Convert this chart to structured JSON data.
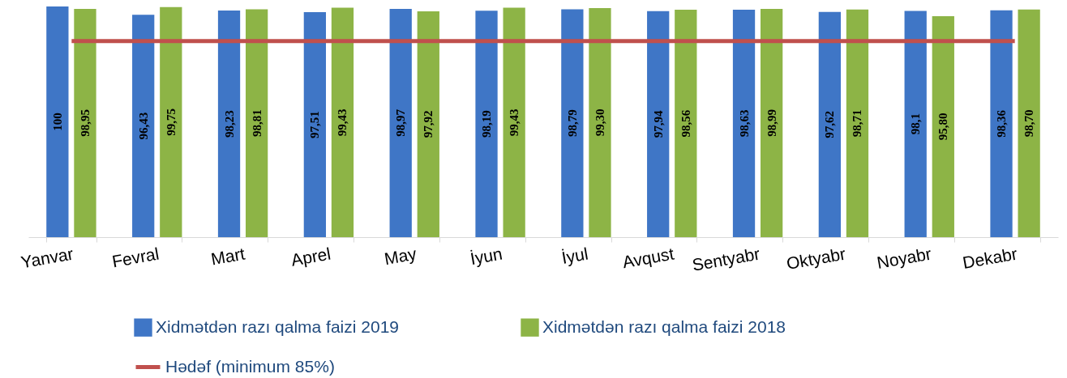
{
  "chart_data": {
    "type": "bar",
    "categories": [
      "Yanvar",
      "Fevral",
      "Mart",
      "Aprel",
      "May",
      "İyun",
      "İyul",
      "Avqust",
      "Sentyabr",
      "Oktyabr",
      "Noyabr",
      "Dekabr"
    ],
    "series": [
      {
        "name": "Xidmətdən razı qalma faizi 2019",
        "color": "#3f76c6",
        "values": [
          100,
          96.43,
          98.23,
          97.51,
          98.97,
          98.19,
          98.79,
          97.94,
          98.63,
          97.62,
          98.1,
          98.36
        ],
        "value_labels": [
          "100",
          "96,43",
          "98,23",
          "97,51",
          "98,97",
          "98,19",
          "98,79",
          "97,94",
          "98,63",
          "97,62",
          "98,1",
          "98,36"
        ]
      },
      {
        "name": "Xidmətdən razı qalma faizi 2018",
        "color": "#8db446",
        "values": [
          98.95,
          99.75,
          98.81,
          99.43,
          97.92,
          99.43,
          99.3,
          98.56,
          98.99,
          98.71,
          95.8,
          98.7
        ],
        "value_labels": [
          "98,95",
          "99,75",
          "98,81",
          "99,43",
          "97,92",
          "99,43",
          "99,30",
          "98,56",
          "98,99",
          "98,71",
          "95,80",
          "98,70"
        ]
      }
    ],
    "ylim": [
      0,
      100
    ],
    "tick_labels": "x",
    "ref_lines": [
      {
        "axis": "y",
        "value": 85,
        "label": "Hədəf (minimum 85%)",
        "color": "#c0504d"
      }
    ],
    "legend": "bottom"
  }
}
